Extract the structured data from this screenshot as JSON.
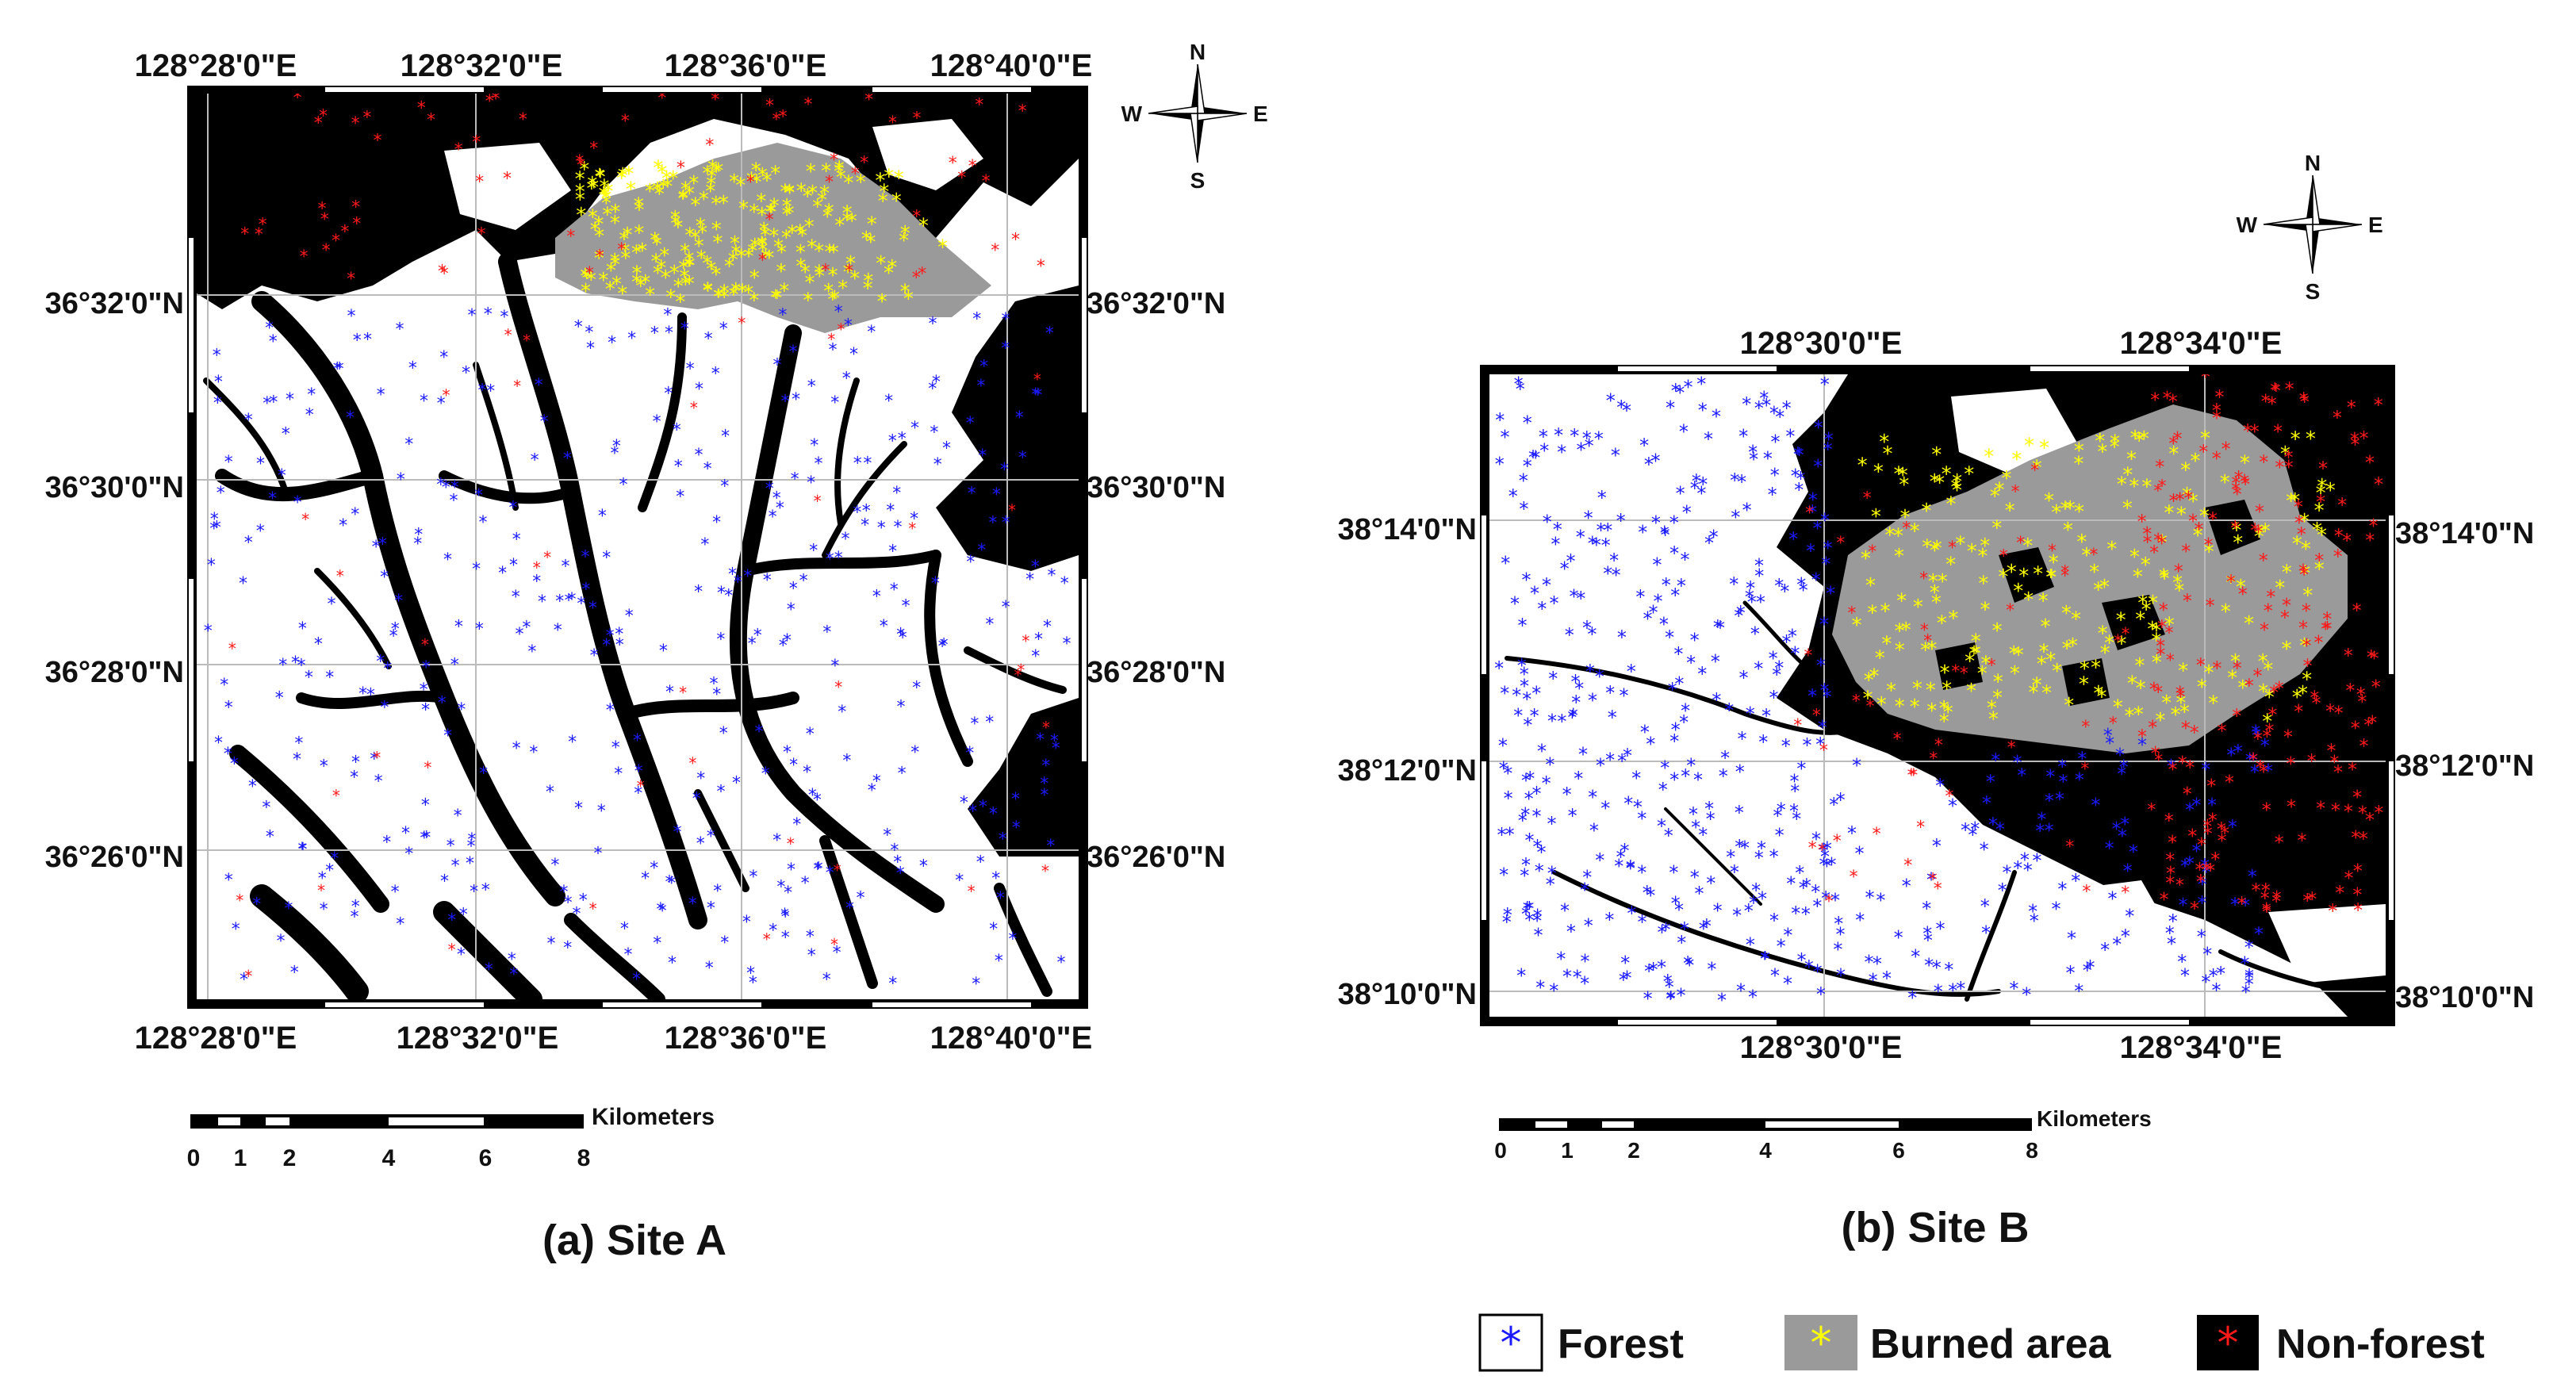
{
  "site_a": {
    "top_lon_labels": [
      "128°28'0\"E",
      "128°32'0\"E",
      "128°36'0\"E",
      "128°40'0\"E"
    ],
    "bottom_lon_labels": [
      "128°28'0\"E",
      "128°32'0\"E",
      "128°36'0\"E",
      "128°40'0\"E"
    ],
    "lat_labels": [
      "36°32'0\"N",
      "36°30'0\"N",
      "36°28'0\"N",
      "36°26'0\"N"
    ],
    "compass": {
      "n": "N",
      "s": "S",
      "e": "E",
      "w": "W"
    },
    "scale": {
      "unit": "Kilometers",
      "ticks": [
        "0",
        "1",
        "2",
        "4",
        "6",
        "8"
      ]
    },
    "caption": "(a) Site A"
  },
  "site_b": {
    "top_lon_labels": [
      "128°30'0\"E",
      "128°34'0\"E"
    ],
    "bottom_lon_labels": [
      "128°30'0\"E",
      "128°34'0\"E"
    ],
    "lat_labels": [
      "38°14'0\"N",
      "38°12'0\"N",
      "38°10'0\"N"
    ],
    "compass": {
      "n": "N",
      "s": "S",
      "e": "E",
      "w": "W"
    },
    "scale": {
      "unit": "Kilometers",
      "ticks": [
        "0",
        "1",
        "2",
        "4",
        "6",
        "8"
      ]
    },
    "caption": "(b) Site B"
  },
  "legend": [
    {
      "label": "Forest",
      "swatch_color": "#ffffff",
      "marker_color": "#1a1aff"
    },
    {
      "label": "Burned area",
      "swatch_color": "#9a9a9a",
      "marker_color": "#ffff00"
    },
    {
      "label": "Non-forest",
      "swatch_color": "#000000",
      "marker_color": "#ff1a1a"
    }
  ],
  "colors": {
    "forest_point": "#1a1aff",
    "burned_point": "#ffff00",
    "nonforest_point": "#ff1a1a",
    "burned_fill": "#9a9a9a",
    "nonforest_fill": "#000000"
  }
}
